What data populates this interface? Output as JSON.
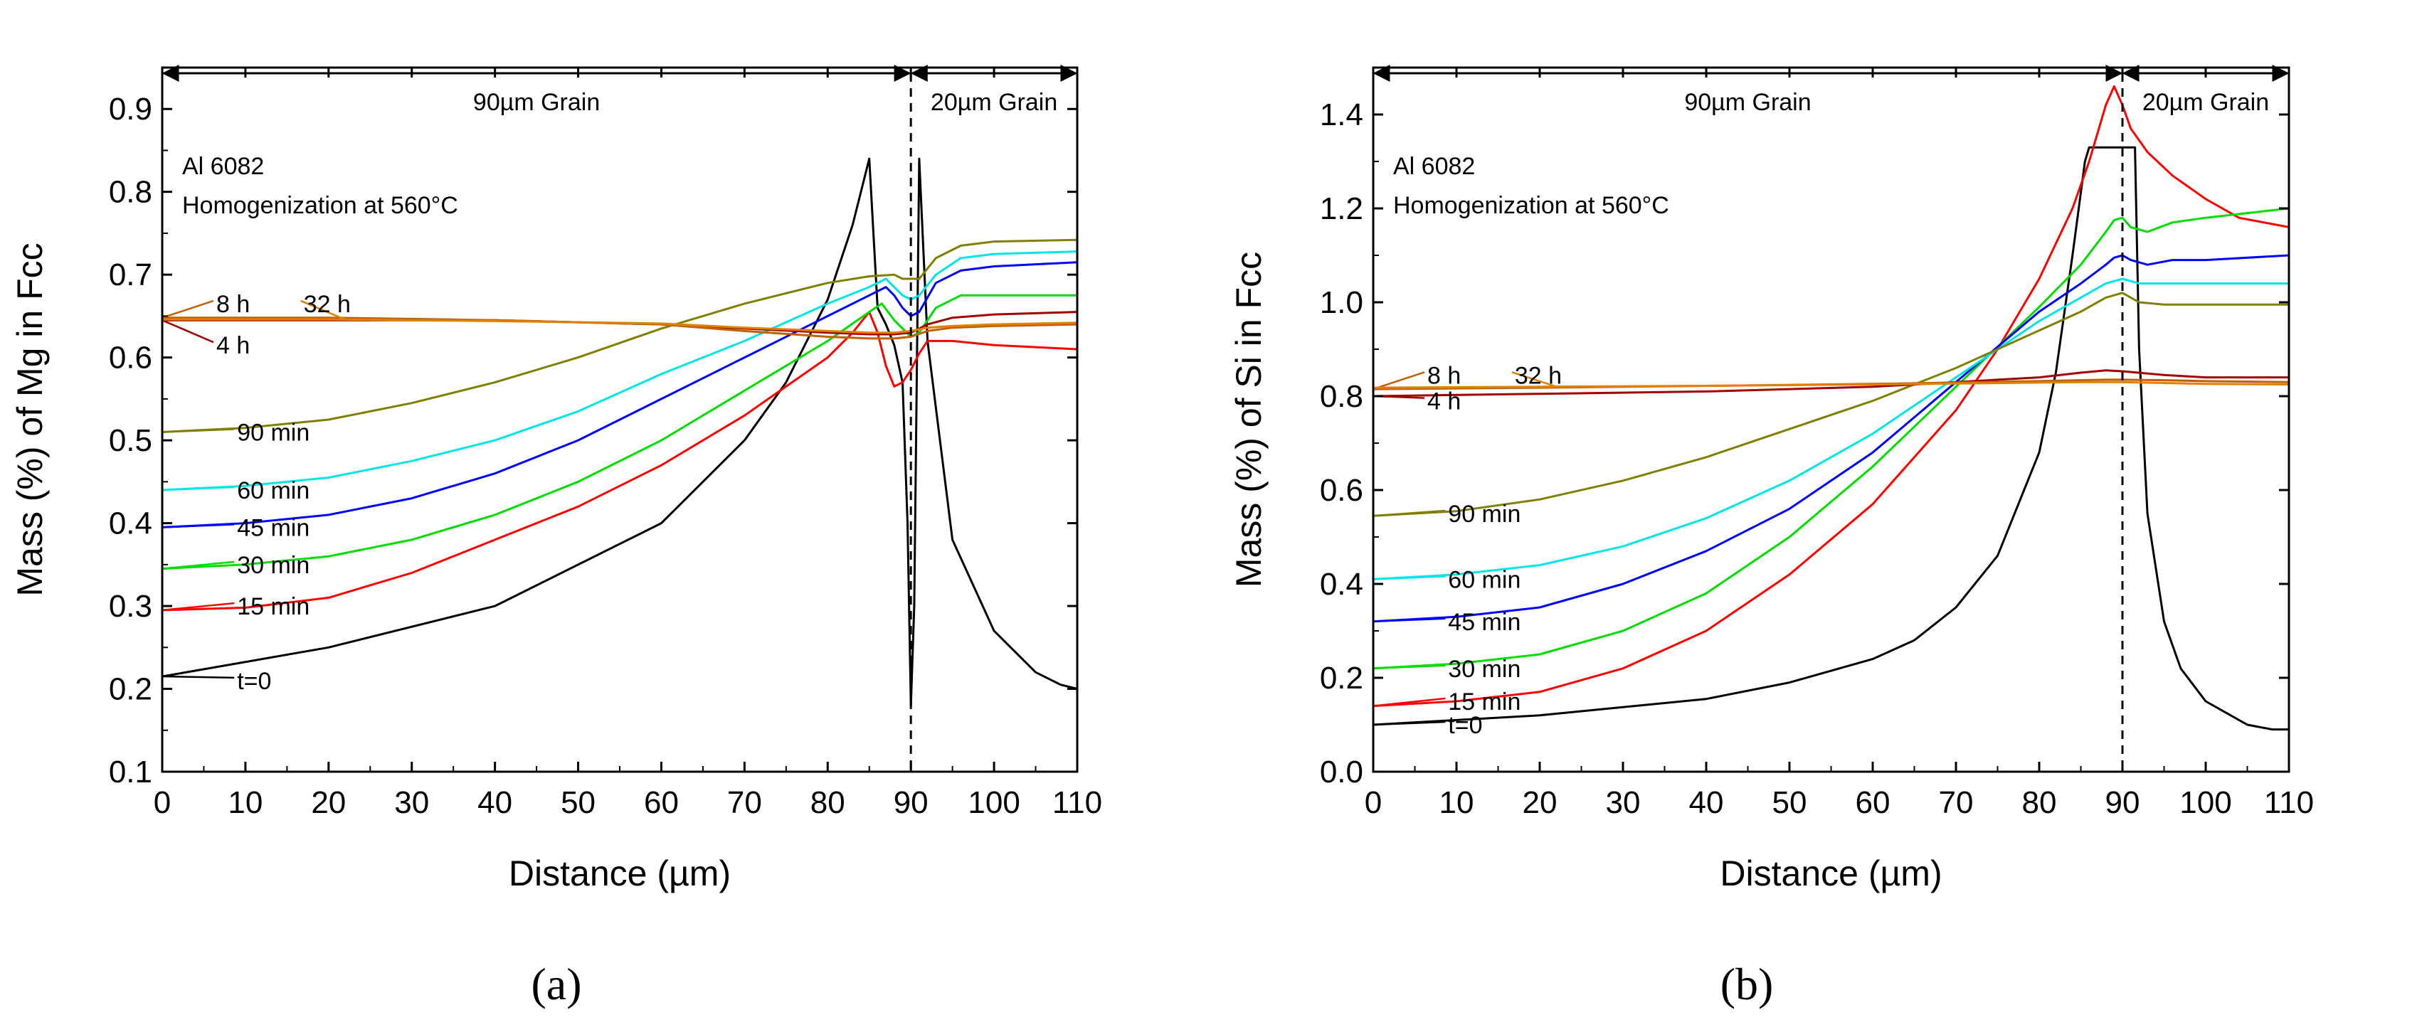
{
  "figure": {
    "panel_labels": [
      "(a)",
      "(b)"
    ]
  },
  "chart_data": [
    {
      "type": "line",
      "panel": "(a)",
      "xlabel": "Distance (µm)",
      "ylabel": "Mass (%) of Mg in Fcc",
      "xlim": [
        0,
        110
      ],
      "ylim": [
        0.1,
        0.95
      ],
      "xticks": [
        0,
        10,
        20,
        30,
        40,
        50,
        60,
        70,
        80,
        90,
        100,
        110
      ],
      "yticks": [
        0.1,
        0.2,
        0.3,
        0.4,
        0.5,
        0.6,
        0.7,
        0.8,
        0.9
      ],
      "ytick_decimals": 1,
      "boundary_x": 90,
      "annotations": {
        "alloy": "Al 6082",
        "condition": "Homogenization at 560°C",
        "region_left": "90µm Grain",
        "region_right": "20µm Grain"
      },
      "series": [
        {
          "name": "t=0",
          "color": "#000000",
          "label_x": 9,
          "label_y": 0.21,
          "label_target_x": 0,
          "x": [
            0,
            20,
            40,
            60,
            70,
            75,
            80,
            83,
            85,
            86,
            87,
            88,
            89,
            89.6,
            90,
            90.4,
            91,
            92,
            95,
            100,
            105,
            108,
            110
          ],
          "y": [
            0.215,
            0.25,
            0.3,
            0.4,
            0.5,
            0.57,
            0.67,
            0.76,
            0.84,
            0.66,
            0.64,
            0.615,
            0.57,
            0.4,
            0.18,
            0.3,
            0.84,
            0.62,
            0.38,
            0.27,
            0.22,
            0.205,
            0.2
          ]
        },
        {
          "name": "15 min",
          "color": "#ff0000",
          "label_x": 9,
          "label_y": 0.3,
          "label_target_x": 0,
          "x": [
            0,
            10,
            20,
            30,
            40,
            50,
            60,
            70,
            75,
            80,
            83,
            85,
            86,
            87,
            88,
            89,
            90,
            91,
            92,
            95,
            100,
            110
          ],
          "y": [
            0.295,
            0.298,
            0.31,
            0.34,
            0.38,
            0.42,
            0.47,
            0.53,
            0.565,
            0.6,
            0.63,
            0.655,
            0.63,
            0.59,
            0.565,
            0.57,
            0.585,
            0.605,
            0.62,
            0.62,
            0.615,
            0.61
          ]
        },
        {
          "name": "30 min",
          "color": "#00dd00",
          "label_x": 9,
          "label_y": 0.35,
          "label_target_x": 0,
          "x": [
            0,
            10,
            20,
            30,
            40,
            50,
            60,
            70,
            80,
            85,
            86.5,
            88,
            90,
            91,
            93,
            96,
            100,
            110
          ],
          "y": [
            0.345,
            0.35,
            0.36,
            0.38,
            0.41,
            0.45,
            0.5,
            0.56,
            0.62,
            0.655,
            0.665,
            0.645,
            0.625,
            0.63,
            0.66,
            0.675,
            0.675,
            0.675
          ]
        },
        {
          "name": "45 min",
          "color": "#0000ff",
          "label_x": 9,
          "label_y": 0.395,
          "label_target_x": 0,
          "x": [
            0,
            10,
            20,
            30,
            40,
            50,
            60,
            70,
            80,
            85,
            87,
            88,
            89,
            90,
            91,
            93,
            96,
            100,
            110
          ],
          "y": [
            0.395,
            0.4,
            0.41,
            0.43,
            0.46,
            0.5,
            0.55,
            0.6,
            0.65,
            0.675,
            0.685,
            0.675,
            0.66,
            0.65,
            0.655,
            0.69,
            0.705,
            0.71,
            0.715
          ]
        },
        {
          "name": "60 min",
          "color": "#00e5e5",
          "label_x": 9,
          "label_y": 0.44,
          "label_target_x": 0,
          "x": [
            0,
            10,
            20,
            30,
            40,
            50,
            60,
            70,
            80,
            85,
            87,
            89,
            90,
            91,
            93,
            96,
            100,
            110
          ],
          "y": [
            0.44,
            0.445,
            0.455,
            0.475,
            0.5,
            0.535,
            0.58,
            0.62,
            0.665,
            0.685,
            0.695,
            0.675,
            0.67,
            0.675,
            0.7,
            0.72,
            0.725,
            0.728
          ]
        },
        {
          "name": "90 min",
          "color": "#808000",
          "label_x": 9,
          "label_y": 0.51,
          "label_target_x": 0,
          "x": [
            0,
            10,
            20,
            30,
            40,
            50,
            60,
            70,
            80,
            85,
            88,
            89,
            90,
            91,
            93,
            96,
            100,
            110
          ],
          "y": [
            0.51,
            0.515,
            0.525,
            0.545,
            0.57,
            0.6,
            0.635,
            0.665,
            0.69,
            0.698,
            0.7,
            0.695,
            0.695,
            0.695,
            0.72,
            0.735,
            0.74,
            0.742
          ]
        },
        {
          "name": "4 h",
          "color": "#a00000",
          "label_x": 6.5,
          "label_y": 0.615,
          "label_target_x": 0,
          "x": [
            0,
            20,
            40,
            60,
            70,
            80,
            85,
            88,
            90,
            92,
            95,
            100,
            110
          ],
          "y": [
            0.645,
            0.645,
            0.645,
            0.64,
            0.635,
            0.63,
            0.628,
            0.628,
            0.63,
            0.64,
            0.648,
            0.652,
            0.655
          ]
        },
        {
          "name": "8 h",
          "color": "#c06000",
          "label_x": 6.5,
          "label_y": 0.665,
          "label_target_x": 0,
          "x": [
            0,
            20,
            40,
            60,
            70,
            80,
            85,
            88,
            90,
            92,
            95,
            100,
            110
          ],
          "y": [
            0.648,
            0.648,
            0.645,
            0.64,
            0.632,
            0.625,
            0.623,
            0.623,
            0.625,
            0.632,
            0.636,
            0.638,
            0.64
          ]
        },
        {
          "name": "32 h",
          "color": "#e08000",
          "label_x": 17,
          "label_y": 0.665,
          "label_target_x": 22,
          "x": [
            0,
            20,
            40,
            60,
            70,
            80,
            85,
            88,
            90,
            92,
            95,
            100,
            110
          ],
          "y": [
            0.646,
            0.646,
            0.644,
            0.641,
            0.636,
            0.632,
            0.63,
            0.63,
            0.632,
            0.636,
            0.638,
            0.64,
            0.642
          ]
        }
      ]
    },
    {
      "type": "line",
      "panel": "(b)",
      "xlabel": "Distance (µm)",
      "ylabel": "Mass (%) of Si in Fcc",
      "xlim": [
        0,
        110
      ],
      "ylim": [
        0.0,
        1.5
      ],
      "xticks": [
        0,
        10,
        20,
        30,
        40,
        50,
        60,
        70,
        80,
        90,
        100,
        110
      ],
      "yticks": [
        0.0,
        0.2,
        0.4,
        0.6,
        0.8,
        1.0,
        1.2,
        1.4
      ],
      "ytick_decimals": 1,
      "boundary_x": 90,
      "annotations": {
        "alloy": "Al 6082",
        "condition": "Homogenization at 560°C",
        "region_left": "90µm Grain",
        "region_right": "20µm Grain"
      },
      "series": [
        {
          "name": "t=0",
          "color": "#000000",
          "label_x": 9,
          "label_y": 0.1,
          "label_target_x": 0,
          "x": [
            0,
            20,
            40,
            50,
            60,
            65,
            70,
            75,
            80,
            82,
            84,
            85.5,
            86,
            86.5,
            87,
            88,
            90,
            91,
            91.5,
            92,
            93,
            95,
            97,
            100,
            105,
            108,
            110
          ],
          "y": [
            0.1,
            0.12,
            0.155,
            0.19,
            0.24,
            0.28,
            0.35,
            0.46,
            0.68,
            0.85,
            1.1,
            1.3,
            1.33,
            1.33,
            1.33,
            1.33,
            1.33,
            1.33,
            1.33,
            0.9,
            0.55,
            0.32,
            0.22,
            0.15,
            0.1,
            0.09,
            0.09
          ]
        },
        {
          "name": "15 min",
          "color": "#ff0000",
          "label_x": 9,
          "label_y": 0.15,
          "label_target_x": 0,
          "x": [
            0,
            10,
            20,
            30,
            40,
            50,
            60,
            70,
            75,
            80,
            84,
            86,
            88,
            89,
            90,
            91,
            93,
            96,
            100,
            104,
            110
          ],
          "y": [
            0.14,
            0.15,
            0.17,
            0.22,
            0.3,
            0.42,
            0.57,
            0.77,
            0.9,
            1.05,
            1.2,
            1.3,
            1.42,
            1.46,
            1.42,
            1.37,
            1.32,
            1.27,
            1.22,
            1.18,
            1.16
          ]
        },
        {
          "name": "30 min",
          "color": "#00dd00",
          "label_x": 9,
          "label_y": 0.22,
          "label_target_x": 0,
          "x": [
            0,
            10,
            20,
            30,
            40,
            50,
            60,
            70,
            80,
            85,
            88,
            89,
            90,
            91,
            93,
            96,
            100,
            110
          ],
          "y": [
            0.22,
            0.23,
            0.25,
            0.3,
            0.38,
            0.5,
            0.65,
            0.82,
            0.99,
            1.08,
            1.15,
            1.175,
            1.18,
            1.16,
            1.15,
            1.17,
            1.18,
            1.2
          ]
        },
        {
          "name": "45 min",
          "color": "#0000ff",
          "label_x": 9,
          "label_y": 0.32,
          "label_target_x": 0,
          "x": [
            0,
            10,
            20,
            30,
            40,
            50,
            60,
            70,
            80,
            85,
            88,
            89,
            90,
            91,
            93,
            96,
            100,
            110
          ],
          "y": [
            0.32,
            0.33,
            0.35,
            0.4,
            0.47,
            0.56,
            0.68,
            0.83,
            0.98,
            1.04,
            1.08,
            1.095,
            1.1,
            1.09,
            1.08,
            1.09,
            1.09,
            1.1
          ]
        },
        {
          "name": "60 min",
          "color": "#00e5e5",
          "label_x": 9,
          "label_y": 0.41,
          "label_target_x": 0,
          "x": [
            0,
            10,
            20,
            30,
            40,
            50,
            60,
            70,
            80,
            85,
            88,
            90,
            92,
            95,
            100,
            110
          ],
          "y": [
            0.41,
            0.42,
            0.44,
            0.48,
            0.54,
            0.62,
            0.72,
            0.84,
            0.96,
            1.01,
            1.04,
            1.05,
            1.04,
            1.04,
            1.04,
            1.04
          ]
        },
        {
          "name": "90 min",
          "color": "#808000",
          "label_x": 9,
          "label_y": 0.55,
          "label_target_x": 0,
          "x": [
            0,
            10,
            20,
            30,
            40,
            50,
            60,
            70,
            80,
            85,
            88,
            90,
            92,
            95,
            100,
            110
          ],
          "y": [
            0.545,
            0.555,
            0.58,
            0.62,
            0.67,
            0.73,
            0.79,
            0.86,
            0.94,
            0.98,
            1.01,
            1.02,
            1.0,
            0.995,
            0.995,
            0.995
          ]
        },
        {
          "name": "4 h",
          "color": "#a00000",
          "label_x": 6.5,
          "label_y": 0.79,
          "label_target_x": 0,
          "x": [
            0,
            20,
            40,
            60,
            70,
            80,
            85,
            88,
            90,
            95,
            100,
            110
          ],
          "y": [
            0.8,
            0.805,
            0.81,
            0.82,
            0.83,
            0.84,
            0.85,
            0.855,
            0.853,
            0.845,
            0.84,
            0.84
          ]
        },
        {
          "name": "8 h",
          "color": "#c06000",
          "label_x": 6.5,
          "label_y": 0.845,
          "label_target_x": 0,
          "x": [
            0,
            20,
            40,
            60,
            70,
            80,
            85,
            88,
            90,
            95,
            100,
            110
          ],
          "y": [
            0.815,
            0.818,
            0.822,
            0.826,
            0.829,
            0.832,
            0.834,
            0.835,
            0.835,
            0.834,
            0.832,
            0.83
          ]
        },
        {
          "name": "32 h",
          "color": "#e08000",
          "label_x": 17,
          "label_y": 0.845,
          "label_target_x": 22,
          "x": [
            0,
            20,
            40,
            60,
            70,
            80,
            85,
            88,
            90,
            95,
            100,
            110
          ],
          "y": [
            0.818,
            0.82,
            0.822,
            0.825,
            0.827,
            0.829,
            0.83,
            0.83,
            0.83,
            0.828,
            0.826,
            0.825
          ]
        }
      ]
    }
  ]
}
